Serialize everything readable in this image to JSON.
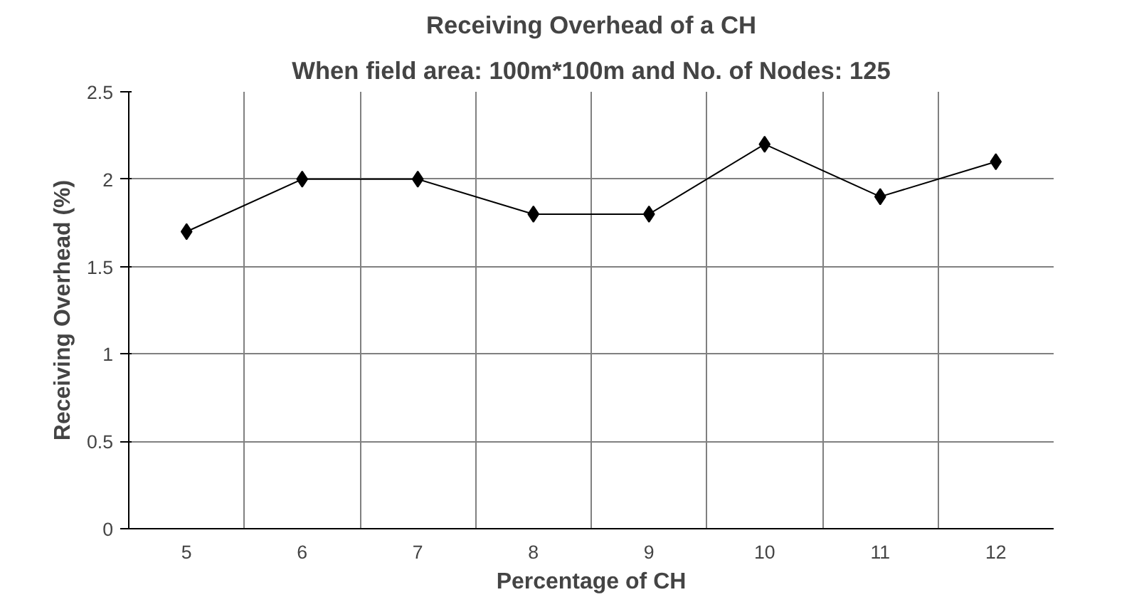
{
  "chart_data": {
    "type": "line",
    "title": "Receiving Overhead of a CH",
    "subtitle": "When field area: 100m*100m and No. of Nodes: 125",
    "xlabel": "Percentage of CH",
    "ylabel": "Receiving Overhead (%)",
    "categories": [
      "5",
      "6",
      "7",
      "8",
      "9",
      "10",
      "11",
      "12"
    ],
    "series": [
      {
        "color": "#000000",
        "values": [
          1.7,
          2.0,
          2.0,
          1.8,
          1.8,
          2.2,
          1.9,
          2.1
        ]
      }
    ],
    "ylim": [
      0,
      2.5
    ],
    "yticks": [
      0,
      0.5,
      1,
      1.5,
      2,
      2.5
    ],
    "grid": true,
    "marker": "diamond",
    "line_style": "solid"
  }
}
